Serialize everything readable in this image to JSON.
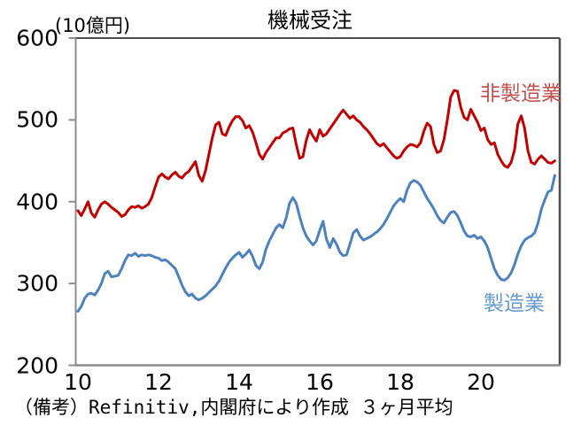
{
  "header": {
    "title": "機械受注",
    "y_axis_unit": "(10億円)"
  },
  "footer": {
    "note": "（備考）Refinitiv,内閣府により作成 ３ヶ月平均"
  },
  "colors": {
    "nonmanufacturing_line": "#C00000",
    "nonmanufacturing_label": "#C0504D",
    "manufacturing_line": "#4F81BD",
    "manufacturing_label": "#6699CC",
    "axis_gray": "#8C8C8C",
    "frame_dark": "#4D4D4D"
  },
  "chart_data": {
    "type": "line",
    "title": "機械受注",
    "ylabel": "(10億円)",
    "xlabel": "",
    "ylim": [
      200,
      600
    ],
    "y_ticks": [
      600,
      500,
      400,
      300,
      200
    ],
    "x_ticks": [
      10,
      12,
      14,
      16,
      18,
      20
    ],
    "x_start_year": 2010,
    "x_frequency": "monthly",
    "x_end": "2021-11",
    "grid": false,
    "legend_position": "inline-labels",
    "series": [
      {
        "name": "非製造業",
        "color": "#C00000",
        "label_color": "#C0504D",
        "values": [
          389,
          383,
          391,
          400,
          386,
          381,
          390,
          397,
          400,
          397,
          393,
          390,
          387,
          382,
          384,
          390,
          394,
          393,
          395,
          392,
          394,
          397,
          405,
          418,
          430,
          434,
          430,
          428,
          433,
          436,
          431,
          429,
          434,
          437,
          443,
          449,
          432,
          425,
          438,
          458,
          478,
          494,
          497,
          483,
          481,
          491,
          499,
          504,
          504,
          499,
          490,
          493,
          485,
          472,
          458,
          452,
          460,
          466,
          472,
          478,
          478,
          484,
          486,
          489,
          490,
          470,
          453,
          455,
          475,
          488,
          480,
          474,
          488,
          480,
          483,
          489,
          495,
          501,
          507,
          512,
          507,
          502,
          505,
          500,
          497,
          492,
          488,
          483,
          477,
          471,
          468,
          471,
          466,
          461,
          456,
          453,
          455,
          462,
          467,
          470,
          469,
          467,
          472,
          486,
          496,
          492,
          470,
          460,
          462,
          476,
          500,
          528,
          536,
          535,
          515,
          503,
          500,
          513,
          505,
          497,
          487,
          490,
          476,
          470,
          472,
          458,
          450,
          444,
          442,
          448,
          463,
          495,
          505,
          490,
          462,
          448,
          446,
          452,
          456,
          452,
          448,
          447,
          450
        ]
      },
      {
        "name": "製造業",
        "color": "#4F81BD",
        "label_color": "#6699CC",
        "values": [
          266,
          272,
          282,
          287,
          288,
          286,
          292,
          300,
          312,
          315,
          308,
          309,
          310,
          318,
          328,
          335,
          334,
          337,
          333,
          335,
          334,
          335,
          334,
          332,
          331,
          328,
          329,
          326,
          322,
          318,
          308,
          298,
          290,
          285,
          287,
          282,
          280,
          282,
          285,
          289,
          293,
          297,
          303,
          311,
          319,
          326,
          331,
          335,
          338,
          332,
          336,
          341,
          333,
          322,
          318,
          326,
          342,
          352,
          360,
          368,
          372,
          368,
          380,
          398,
          405,
          398,
          382,
          368,
          358,
          352,
          347,
          352,
          365,
          376,
          354,
          344,
          355,
          348,
          338,
          334,
          335,
          348,
          362,
          366,
          358,
          353,
          355,
          357,
          360,
          363,
          367,
          372,
          379,
          387,
          395,
          400,
          404,
          400,
          414,
          423,
          426,
          424,
          420,
          412,
          404,
          398,
          391,
          383,
          377,
          374,
          381,
          387,
          388,
          383,
          374,
          364,
          358,
          357,
          359,
          355,
          357,
          352,
          344,
          331,
          318,
          310,
          305,
          304,
          307,
          313,
          323,
          336,
          346,
          353,
          356,
          358,
          362,
          374,
          391,
          402,
          412,
          414,
          432
        ]
      }
    ]
  }
}
